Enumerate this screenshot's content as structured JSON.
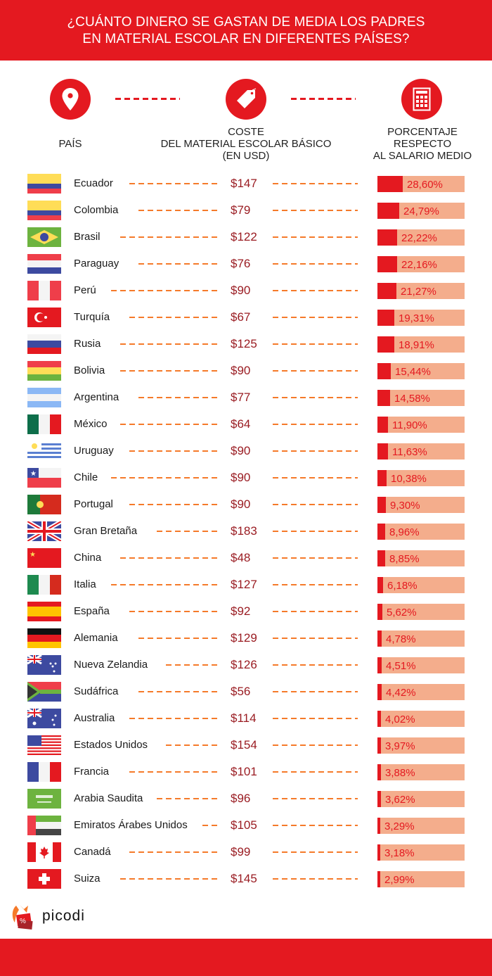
{
  "header": {
    "title_line1": "¿CUÁNTO DINERO SE GASTAN DE MEDIA LOS PADRES",
    "title_line2": "EN MATERIAL ESCOLAR EN DIFERENTES PAÍSES?"
  },
  "columns": {
    "country": {
      "icon": "map-pin-icon",
      "label": "PAÍS"
    },
    "cost": {
      "icon": "price-tag-icon",
      "label_line1": "COSTE",
      "label_line2": "DEL MATERIAL ESCOLAR BÁSICO",
      "label_line3": "(EN USD)"
    },
    "percent": {
      "icon": "calculator-icon",
      "label_line1": "PORCENTAJE",
      "label_line2": "RESPECTO",
      "label_line3": "AL SALARIO MEDIO"
    }
  },
  "colors": {
    "brand_red": "#e41920",
    "bar_background": "#f4ad8c",
    "dash_orange": "#f57a2a",
    "price_text": "#9a1c22"
  },
  "rows": [
    {
      "country": "Ecuador",
      "flag": "ecuador-flag",
      "cost": "$147",
      "percent": "28,60%"
    },
    {
      "country": "Colombia",
      "flag": "colombia-flag",
      "cost": "$79",
      "percent": "24,79%"
    },
    {
      "country": "Brasil",
      "flag": "brazil-flag",
      "cost": "$122",
      "percent": "22,22%"
    },
    {
      "country": "Paraguay",
      "flag": "paraguay-flag",
      "cost": "$76",
      "percent": "22,16%"
    },
    {
      "country": "Perú",
      "flag": "peru-flag",
      "cost": "$90",
      "percent": "21,27%"
    },
    {
      "country": "Turquía",
      "flag": "turkey-flag",
      "cost": "$67",
      "percent": "19,31%"
    },
    {
      "country": "Rusia",
      "flag": "russia-flag",
      "cost": "$125",
      "percent": "18,91%"
    },
    {
      "country": "Bolivia",
      "flag": "bolivia-flag",
      "cost": "$90",
      "percent": "15,44%"
    },
    {
      "country": "Argentina",
      "flag": "argentina-flag",
      "cost": "$77",
      "percent": "14,58%"
    },
    {
      "country": "México",
      "flag": "mexico-flag",
      "cost": "$64",
      "percent": "11,90%"
    },
    {
      "country": "Uruguay",
      "flag": "uruguay-flag",
      "cost": "$90",
      "percent": "11,63%"
    },
    {
      "country": "Chile",
      "flag": "chile-flag",
      "cost": "$90",
      "percent": "10,38%"
    },
    {
      "country": "Portugal",
      "flag": "portugal-flag",
      "cost": "$90",
      "percent": "9,30%"
    },
    {
      "country": "Gran Bretaña",
      "flag": "uk-flag",
      "cost": "$183",
      "percent": "8,96%"
    },
    {
      "country": "China",
      "flag": "china-flag",
      "cost": "$48",
      "percent": "8,85%"
    },
    {
      "country": "Italia",
      "flag": "italy-flag",
      "cost": "$127",
      "percent": "6,18%"
    },
    {
      "country": "España",
      "flag": "spain-flag",
      "cost": "$92",
      "percent": "5,62%"
    },
    {
      "country": "Alemania",
      "flag": "germany-flag",
      "cost": "$129",
      "percent": "4,78%"
    },
    {
      "country": "Nueva Zelandia",
      "flag": "new-zealand-flag",
      "cost": "$126",
      "percent": "4,51%"
    },
    {
      "country": "Sudáfrica",
      "flag": "south-africa-flag",
      "cost": "$56",
      "percent": "4,42%"
    },
    {
      "country": "Australia",
      "flag": "australia-flag",
      "cost": "$114",
      "percent": "4,02%"
    },
    {
      "country": "Estados Unidos",
      "flag": "usa-flag",
      "cost": "$154",
      "percent": "3,97%"
    },
    {
      "country": "Francia",
      "flag": "france-flag",
      "cost": "$101",
      "percent": "3,88%"
    },
    {
      "country": "Arabia Saudita",
      "flag": "saudi-arabia-flag",
      "cost": "$96",
      "percent": "3,62%"
    },
    {
      "country": "Emiratos Árabes Unidos",
      "flag": "uae-flag",
      "cost": "$105",
      "percent": "3,29%"
    },
    {
      "country": "Canadá",
      "flag": "canada-flag",
      "cost": "$99",
      "percent": "3,18%"
    },
    {
      "country": "Suiza",
      "flag": "switzerland-flag",
      "cost": "$145",
      "percent": "2,99%"
    }
  ],
  "footer": {
    "brand": "picodi"
  },
  "chart_data": {
    "type": "table",
    "title": "¿Cuánto dinero se gastan de media los padres en material escolar en diferentes países?",
    "columns": [
      "País",
      "Coste del material escolar básico (en USD)",
      "Porcentaje respecto al salario medio"
    ],
    "categories": [
      "Ecuador",
      "Colombia",
      "Brasil",
      "Paraguay",
      "Perú",
      "Turquía",
      "Rusia",
      "Bolivia",
      "Argentina",
      "México",
      "Uruguay",
      "Chile",
      "Portugal",
      "Gran Bretaña",
      "China",
      "Italia",
      "España",
      "Alemania",
      "Nueva Zelandia",
      "Sudáfrica",
      "Australia",
      "Estados Unidos",
      "Francia",
      "Arabia Saudita",
      "Emiratos Árabes Unidos",
      "Canadá",
      "Suiza"
    ],
    "series": [
      {
        "name": "Coste (USD)",
        "values": [
          147,
          79,
          122,
          76,
          90,
          67,
          125,
          90,
          77,
          64,
          90,
          90,
          90,
          183,
          48,
          127,
          92,
          129,
          126,
          56,
          114,
          154,
          101,
          96,
          105,
          99,
          145
        ]
      },
      {
        "name": "Porcentaje del salario medio (%)",
        "values": [
          28.6,
          24.79,
          22.22,
          22.16,
          21.27,
          19.31,
          18.91,
          15.44,
          14.58,
          11.9,
          11.63,
          10.38,
          9.3,
          8.96,
          8.85,
          6.18,
          5.62,
          4.78,
          4.51,
          4.42,
          4.02,
          3.97,
          3.88,
          3.62,
          3.29,
          3.18,
          2.99
        ]
      }
    ]
  }
}
